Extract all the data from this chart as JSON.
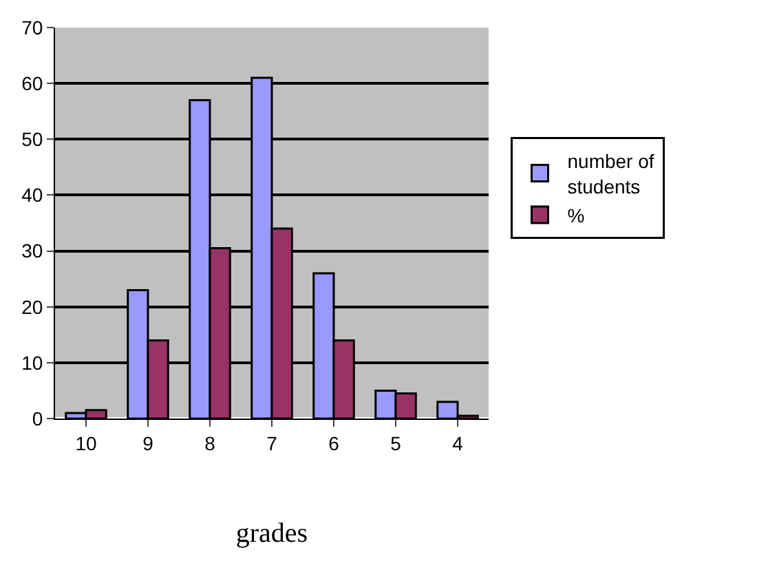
{
  "chart_data": {
    "type": "bar",
    "xlabel": "grades",
    "categories": [
      "10",
      "9",
      "8",
      "7",
      "6",
      "5",
      "4"
    ],
    "series": [
      {
        "name": "number of students",
        "color": "#9999ff",
        "values": [
          1,
          23,
          57,
          61,
          26,
          5,
          3
        ]
      },
      {
        "name": "%",
        "color": "#993366",
        "values": [
          1.5,
          14,
          30.5,
          34,
          14,
          4.5,
          0.5
        ]
      }
    ],
    "ylim": [
      0,
      70
    ],
    "yticks": [
      0,
      10,
      20,
      30,
      40,
      50,
      60,
      70
    ],
    "grid": "y",
    "legend": "right"
  }
}
